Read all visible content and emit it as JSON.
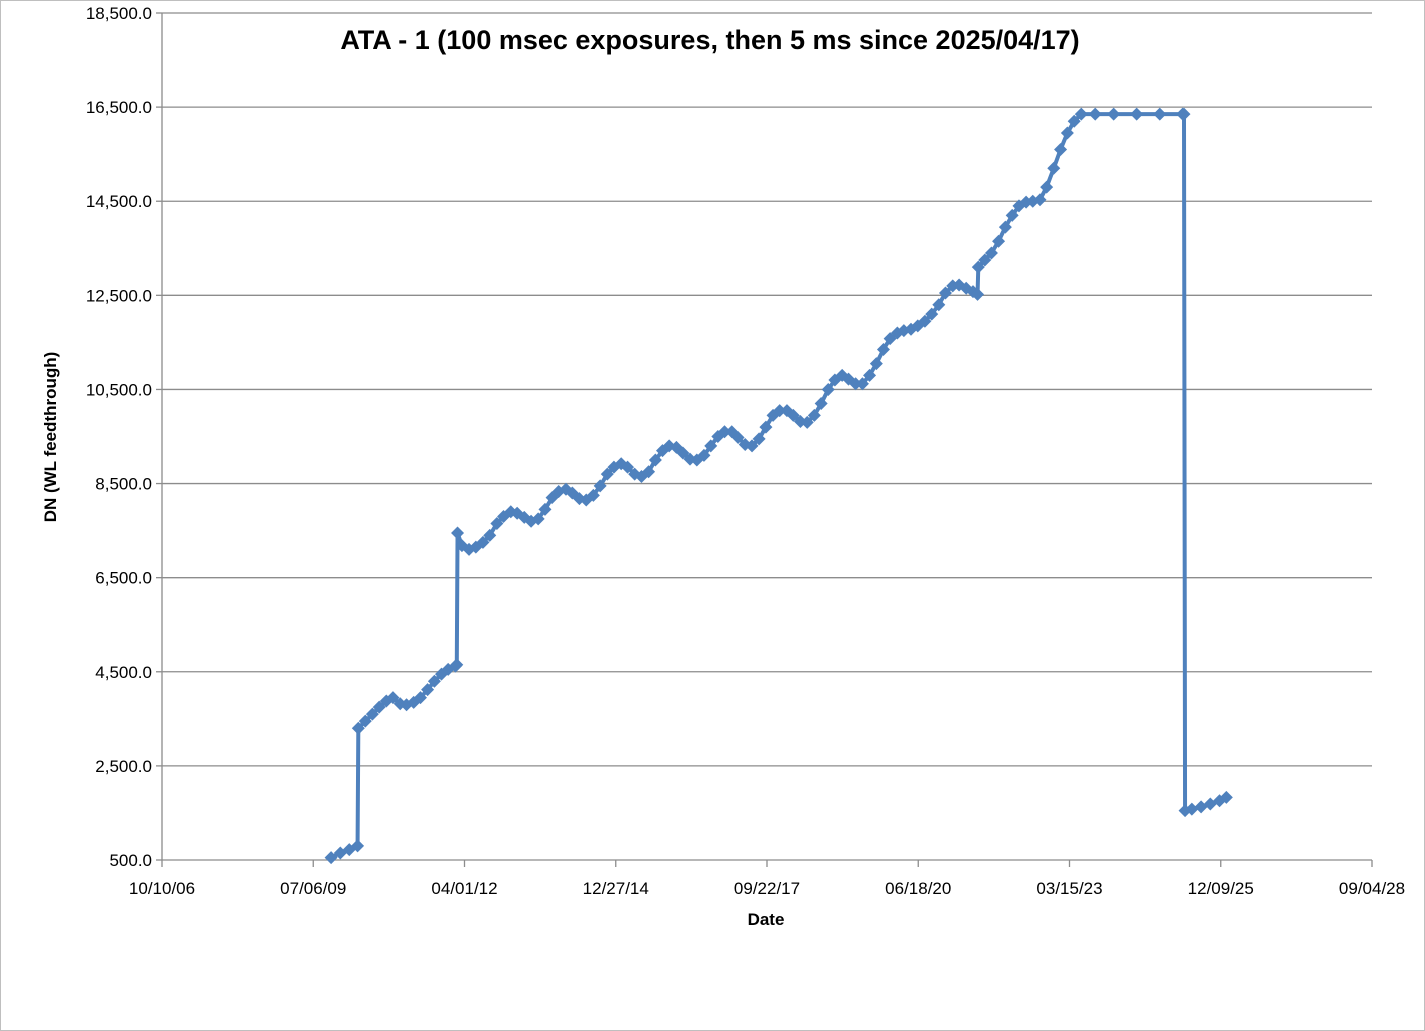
{
  "chart_data": {
    "type": "line",
    "title": "ATA - 1  (100 msec exposures, then 5 ms since 2025/04/17)",
    "xlabel": "Date",
    "ylabel": "DN (WL feedthrough)",
    "ylim": [
      500,
      18500
    ],
    "yticks": [
      500,
      2500,
      4500,
      6500,
      8500,
      10500,
      12500,
      14500,
      16500,
      18500
    ],
    "ytick_labels": [
      "500.0",
      "2,500.0",
      "4,500.0",
      "6,500.0",
      "8,500.0",
      "10,500.0",
      "12,500.0",
      "14,500.0",
      "16,500.0",
      "18,500.0"
    ],
    "xlim": [
      "2006-10-10",
      "2028-09-04"
    ],
    "xticks": [
      "2006-10-10",
      "2009-07-06",
      "2012-04-01",
      "2014-12-27",
      "2017-09-22",
      "2020-06-18",
      "2023-03-15",
      "2025-12-09",
      "2028-09-04"
    ],
    "xtick_labels": [
      "10/10/06",
      "07/06/09",
      "04/01/12",
      "12/27/14",
      "09/22/17",
      "06/18/20",
      "03/15/23",
      "12/09/25",
      "09/04/28"
    ],
    "grid": "horizontal",
    "legend": "none",
    "color": "#4f81bd",
    "series": [
      {
        "marker": "diamond",
        "points": [
          [
            "2009-11-01",
            550
          ],
          [
            "2010-01-01",
            650
          ],
          [
            "2010-03-01",
            720
          ],
          [
            "2010-04-25",
            800
          ],
          [
            "2010-04-30",
            3300
          ],
          [
            "2010-06-15",
            3450
          ],
          [
            "2010-08-01",
            3600
          ],
          [
            "2010-09-15",
            3750
          ],
          [
            "2010-11-01",
            3880
          ],
          [
            "2010-12-15",
            3950
          ],
          [
            "2011-02-01",
            3820
          ],
          [
            "2011-03-15",
            3800
          ],
          [
            "2011-05-01",
            3850
          ],
          [
            "2011-06-15",
            3950
          ],
          [
            "2011-08-01",
            4120
          ],
          [
            "2011-09-15",
            4300
          ],
          [
            "2011-11-01",
            4450
          ],
          [
            "2011-12-15",
            4550
          ],
          [
            "2012-02-01",
            4620
          ],
          [
            "2012-02-10",
            4650
          ],
          [
            "2012-02-15",
            7450
          ],
          [
            "2012-03-15",
            7180
          ],
          [
            "2012-05-01",
            7100
          ],
          [
            "2012-06-15",
            7150
          ],
          [
            "2012-08-01",
            7250
          ],
          [
            "2012-09-15",
            7400
          ],
          [
            "2012-11-01",
            7650
          ],
          [
            "2012-12-15",
            7800
          ],
          [
            "2013-02-01",
            7900
          ],
          [
            "2013-03-15",
            7870
          ],
          [
            "2013-05-01",
            7780
          ],
          [
            "2013-06-15",
            7700
          ],
          [
            "2013-08-01",
            7750
          ],
          [
            "2013-09-15",
            7950
          ],
          [
            "2013-11-01",
            8200
          ],
          [
            "2013-12-15",
            8330
          ],
          [
            "2014-02-01",
            8380
          ],
          [
            "2014-03-15",
            8300
          ],
          [
            "2014-05-01",
            8180
          ],
          [
            "2014-06-15",
            8150
          ],
          [
            "2014-08-01",
            8250
          ],
          [
            "2014-09-15",
            8450
          ],
          [
            "2014-11-01",
            8700
          ],
          [
            "2014-12-15",
            8850
          ],
          [
            "2015-02-01",
            8920
          ],
          [
            "2015-03-15",
            8850
          ],
          [
            "2015-05-01",
            8700
          ],
          [
            "2015-06-15",
            8650
          ],
          [
            "2015-08-01",
            8750
          ],
          [
            "2015-09-15",
            9000
          ],
          [
            "2015-11-01",
            9200
          ],
          [
            "2015-12-15",
            9300
          ],
          [
            "2016-02-01",
            9270
          ],
          [
            "2016-03-15",
            9150
          ],
          [
            "2016-05-01",
            9020
          ],
          [
            "2016-06-15",
            9000
          ],
          [
            "2016-08-01",
            9100
          ],
          [
            "2016-09-15",
            9300
          ],
          [
            "2016-11-01",
            9500
          ],
          [
            "2016-12-15",
            9600
          ],
          [
            "2017-02-01",
            9600
          ],
          [
            "2017-03-15",
            9480
          ],
          [
            "2017-05-01",
            9330
          ],
          [
            "2017-06-15",
            9300
          ],
          [
            "2017-08-01",
            9450
          ],
          [
            "2017-09-15",
            9700
          ],
          [
            "2017-11-01",
            9950
          ],
          [
            "2017-12-15",
            10050
          ],
          [
            "2018-02-01",
            10050
          ],
          [
            "2018-03-15",
            9950
          ],
          [
            "2018-05-01",
            9820
          ],
          [
            "2018-06-15",
            9800
          ],
          [
            "2018-08-01",
            9950
          ],
          [
            "2018-09-15",
            10200
          ],
          [
            "2018-11-01",
            10500
          ],
          [
            "2018-12-15",
            10700
          ],
          [
            "2019-02-01",
            10800
          ],
          [
            "2019-03-15",
            10720
          ],
          [
            "2019-05-01",
            10620
          ],
          [
            "2019-06-15",
            10620
          ],
          [
            "2019-08-01",
            10800
          ],
          [
            "2019-09-15",
            11050
          ],
          [
            "2019-11-01",
            11350
          ],
          [
            "2019-12-15",
            11580
          ],
          [
            "2020-02-01",
            11700
          ],
          [
            "2020-03-15",
            11750
          ],
          [
            "2020-05-01",
            11780
          ],
          [
            "2020-06-15",
            11850
          ],
          [
            "2020-08-01",
            11950
          ],
          [
            "2020-09-15",
            12100
          ],
          [
            "2020-11-01",
            12300
          ],
          [
            "2020-12-15",
            12550
          ],
          [
            "2021-02-01",
            12700
          ],
          [
            "2021-03-15",
            12720
          ],
          [
            "2021-05-01",
            12650
          ],
          [
            "2021-06-15",
            12580
          ],
          [
            "2021-07-15",
            12520
          ],
          [
            "2021-07-20",
            13100
          ],
          [
            "2021-09-01",
            13250
          ],
          [
            "2021-10-15",
            13400
          ],
          [
            "2021-12-01",
            13650
          ],
          [
            "2022-01-15",
            13950
          ],
          [
            "2022-03-01",
            14200
          ],
          [
            "2022-04-15",
            14400
          ],
          [
            "2022-06-01",
            14480
          ],
          [
            "2022-07-15",
            14500
          ],
          [
            "2022-09-01",
            14530
          ],
          [
            "2022-10-15",
            14800
          ],
          [
            "2022-12-01",
            15200
          ],
          [
            "2023-01-15",
            15600
          ],
          [
            "2023-03-01",
            15950
          ],
          [
            "2023-04-15",
            16200
          ],
          [
            "2023-06-01",
            16350
          ],
          [
            "2023-09-01",
            16350
          ],
          [
            "2024-01-01",
            16350
          ],
          [
            "2024-06-01",
            16350
          ],
          [
            "2024-11-01",
            16350
          ],
          [
            "2025-04-01",
            16350
          ],
          [
            "2025-04-10",
            16350
          ],
          [
            "2025-04-17",
            1550
          ],
          [
            "2025-06-01",
            1580
          ],
          [
            "2025-08-01",
            1630
          ],
          [
            "2025-10-01",
            1690
          ],
          [
            "2025-12-01",
            1760
          ],
          [
            "2026-01-15",
            1830
          ]
        ]
      }
    ]
  }
}
